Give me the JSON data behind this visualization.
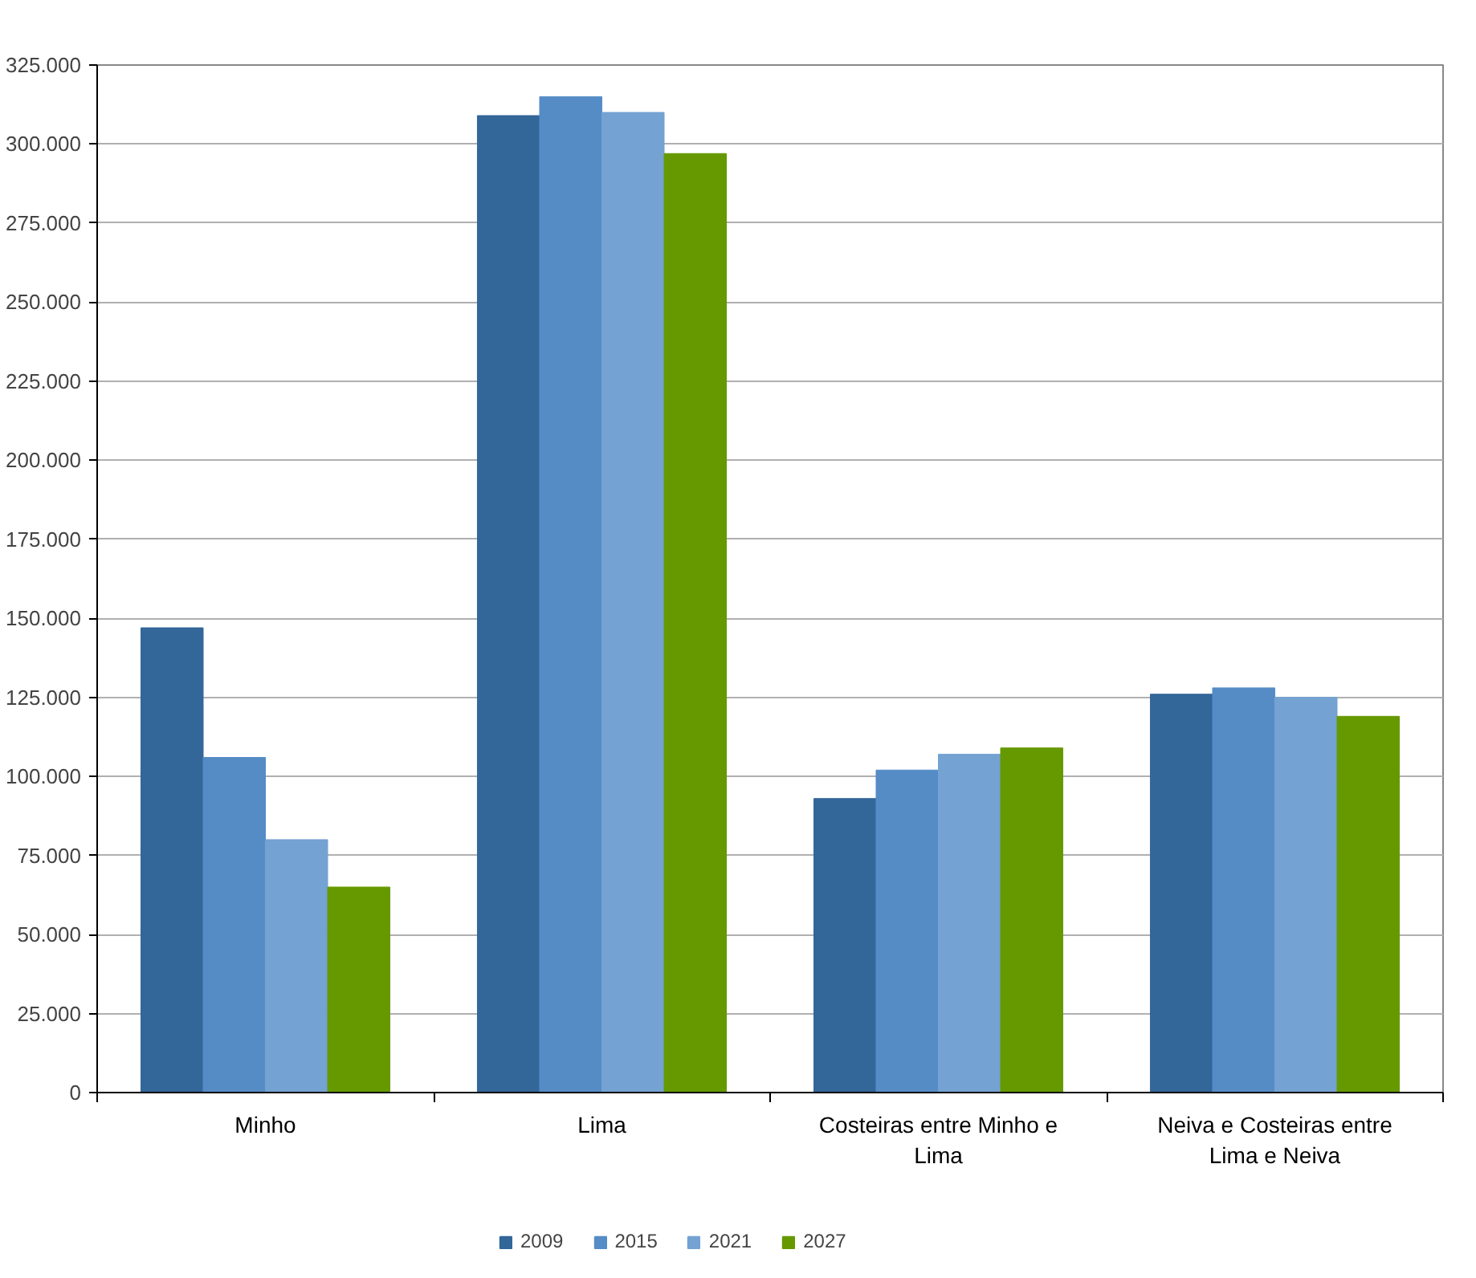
{
  "chart_data": {
    "type": "bar",
    "categories": [
      "Minho",
      "Lima",
      "Costeiras entre Minho e Lima",
      "Neiva e Costeiras entre Lima e Neiva"
    ],
    "series": [
      {
        "name": "2009",
        "color": "#336699",
        "values": [
          147000,
          309000,
          93000,
          126000
        ]
      },
      {
        "name": "2015",
        "color": "#558cc6",
        "values": [
          106000,
          315000,
          102000,
          128000
        ]
      },
      {
        "name": "2021",
        "color": "#74a2d2",
        "values": [
          80000,
          310000,
          107000,
          125000
        ]
      },
      {
        "name": "2027",
        "color": "#669900",
        "values": [
          65000,
          297000,
          109000,
          119000
        ]
      }
    ],
    "ylim": [
      0,
      325000
    ],
    "yticks": [
      {
        "value": 0,
        "label": "0"
      },
      {
        "value": 25000,
        "label": "25.000"
      },
      {
        "value": 50000,
        "label": "50.000"
      },
      {
        "value": 75000,
        "label": "75.000"
      },
      {
        "value": 100000,
        "label": "100.000"
      },
      {
        "value": 125000,
        "label": "125.000"
      },
      {
        "value": 150000,
        "label": "150.000"
      },
      {
        "value": 175000,
        "label": "175.000"
      },
      {
        "value": 200000,
        "label": "200.000"
      },
      {
        "value": 225000,
        "label": "225.000"
      },
      {
        "value": 250000,
        "label": "250.000"
      },
      {
        "value": 275000,
        "label": "275.000"
      },
      {
        "value": 300000,
        "label": "300.000"
      },
      {
        "value": 325000,
        "label": "325.000"
      }
    ],
    "grid": "y",
    "legend": "bottom"
  }
}
